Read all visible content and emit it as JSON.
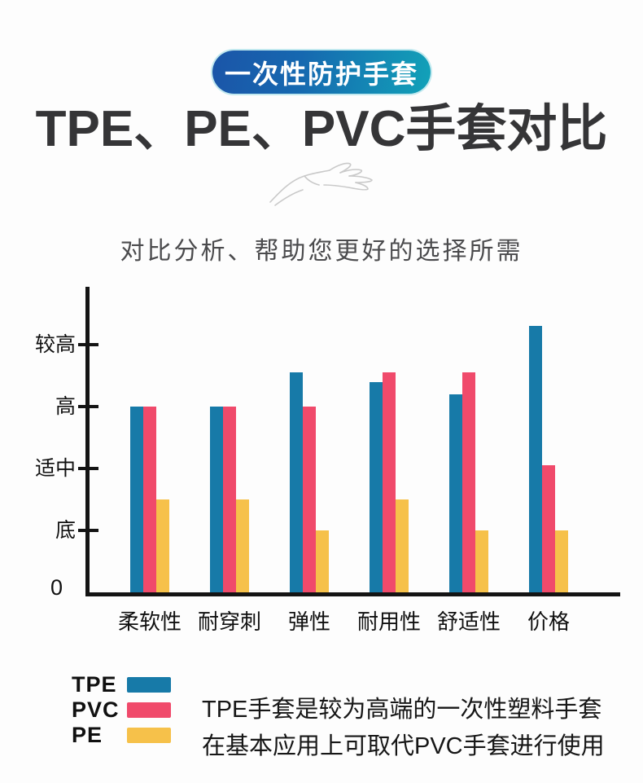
{
  "page": {
    "badge": "一次性防护手套",
    "title": "TPE、PE、PVC手套对比",
    "subtitle": "对比分析、帮助您更好的选择所需"
  },
  "icons": {
    "hand_sketch": "hand-line-drawing"
  },
  "colors": {
    "tpe": "#177AA8",
    "pvc": "#F04A6B",
    "pe": "#F6C14A",
    "badge_gradient_start": "#1B55A8",
    "badge_gradient_end": "#12A2B8",
    "axis": "#141414",
    "title_text": "#353537"
  },
  "chart_data": {
    "type": "bar",
    "title": "",
    "xlabel": "",
    "ylabel": "",
    "categories": [
      "柔软性",
      "耐穿刺",
      "弹性",
      "耐用性",
      "舒适性",
      "价格"
    ],
    "series": [
      {
        "name": "TPE",
        "color_key": "tpe",
        "values": [
          3,
          3,
          3.55,
          3.4,
          3.2,
          4.3
        ]
      },
      {
        "name": "PVC",
        "color_key": "pvc",
        "values": [
          3,
          3,
          3,
          3.55,
          3.55,
          2.05
        ]
      },
      {
        "name": "PE",
        "color_key": "pe",
        "values": [
          1.5,
          1.5,
          1,
          1.5,
          1,
          1
        ]
      }
    ],
    "yticks": [
      {
        "value": 4,
        "label": "较高"
      },
      {
        "value": 3,
        "label": "高"
      },
      {
        "value": 2,
        "label": "适中"
      },
      {
        "value": 1,
        "label": "底"
      }
    ],
    "origin_label": "0",
    "ylim": [
      0,
      5
    ],
    "grid": false,
    "legend_position": "bottom-left"
  },
  "legend": {
    "items": [
      {
        "label": "TPE",
        "color_key": "tpe"
      },
      {
        "label": "PVC",
        "color_key": "pvc"
      },
      {
        "label": "PE",
        "color_key": "pe"
      }
    ]
  },
  "description": {
    "line1": "TPE手套是较为高端的一次性塑料手套",
    "line2": "在基本应用上可取代PVC手套进行使用"
  }
}
